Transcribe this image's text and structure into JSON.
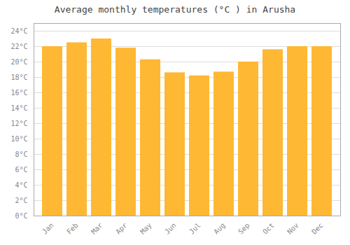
{
  "chart_data": {
    "type": "bar",
    "title": "Average monthly temperatures (°C ) in Arusha",
    "categories": [
      "Jan",
      "Feb",
      "Mar",
      "Apr",
      "May",
      "Jun",
      "Jul",
      "Aug",
      "Sep",
      "Oct",
      "Nov",
      "Dec"
    ],
    "values": [
      22.0,
      22.5,
      23.0,
      21.8,
      20.3,
      18.6,
      18.2,
      18.7,
      20.0,
      21.6,
      22.0,
      22.0
    ],
    "color": "#FFB833",
    "ylim": [
      0,
      25
    ],
    "yticks": [
      {
        "value": 0,
        "label": "0°C"
      },
      {
        "value": 2,
        "label": "2°C"
      },
      {
        "value": 4,
        "label": "4°C"
      },
      {
        "value": 6,
        "label": "6°C"
      },
      {
        "value": 8,
        "label": "8°C"
      },
      {
        "value": 10,
        "label": "10°C"
      },
      {
        "value": 12,
        "label": "12°C"
      },
      {
        "value": 14,
        "label": "14°C"
      },
      {
        "value": 16,
        "label": "16°C"
      },
      {
        "value": 18,
        "label": "18°C"
      },
      {
        "value": 20,
        "label": "20°C"
      },
      {
        "value": 22,
        "label": "22°C"
      },
      {
        "value": 24,
        "label": "24°C"
      }
    ],
    "grid": true
  }
}
